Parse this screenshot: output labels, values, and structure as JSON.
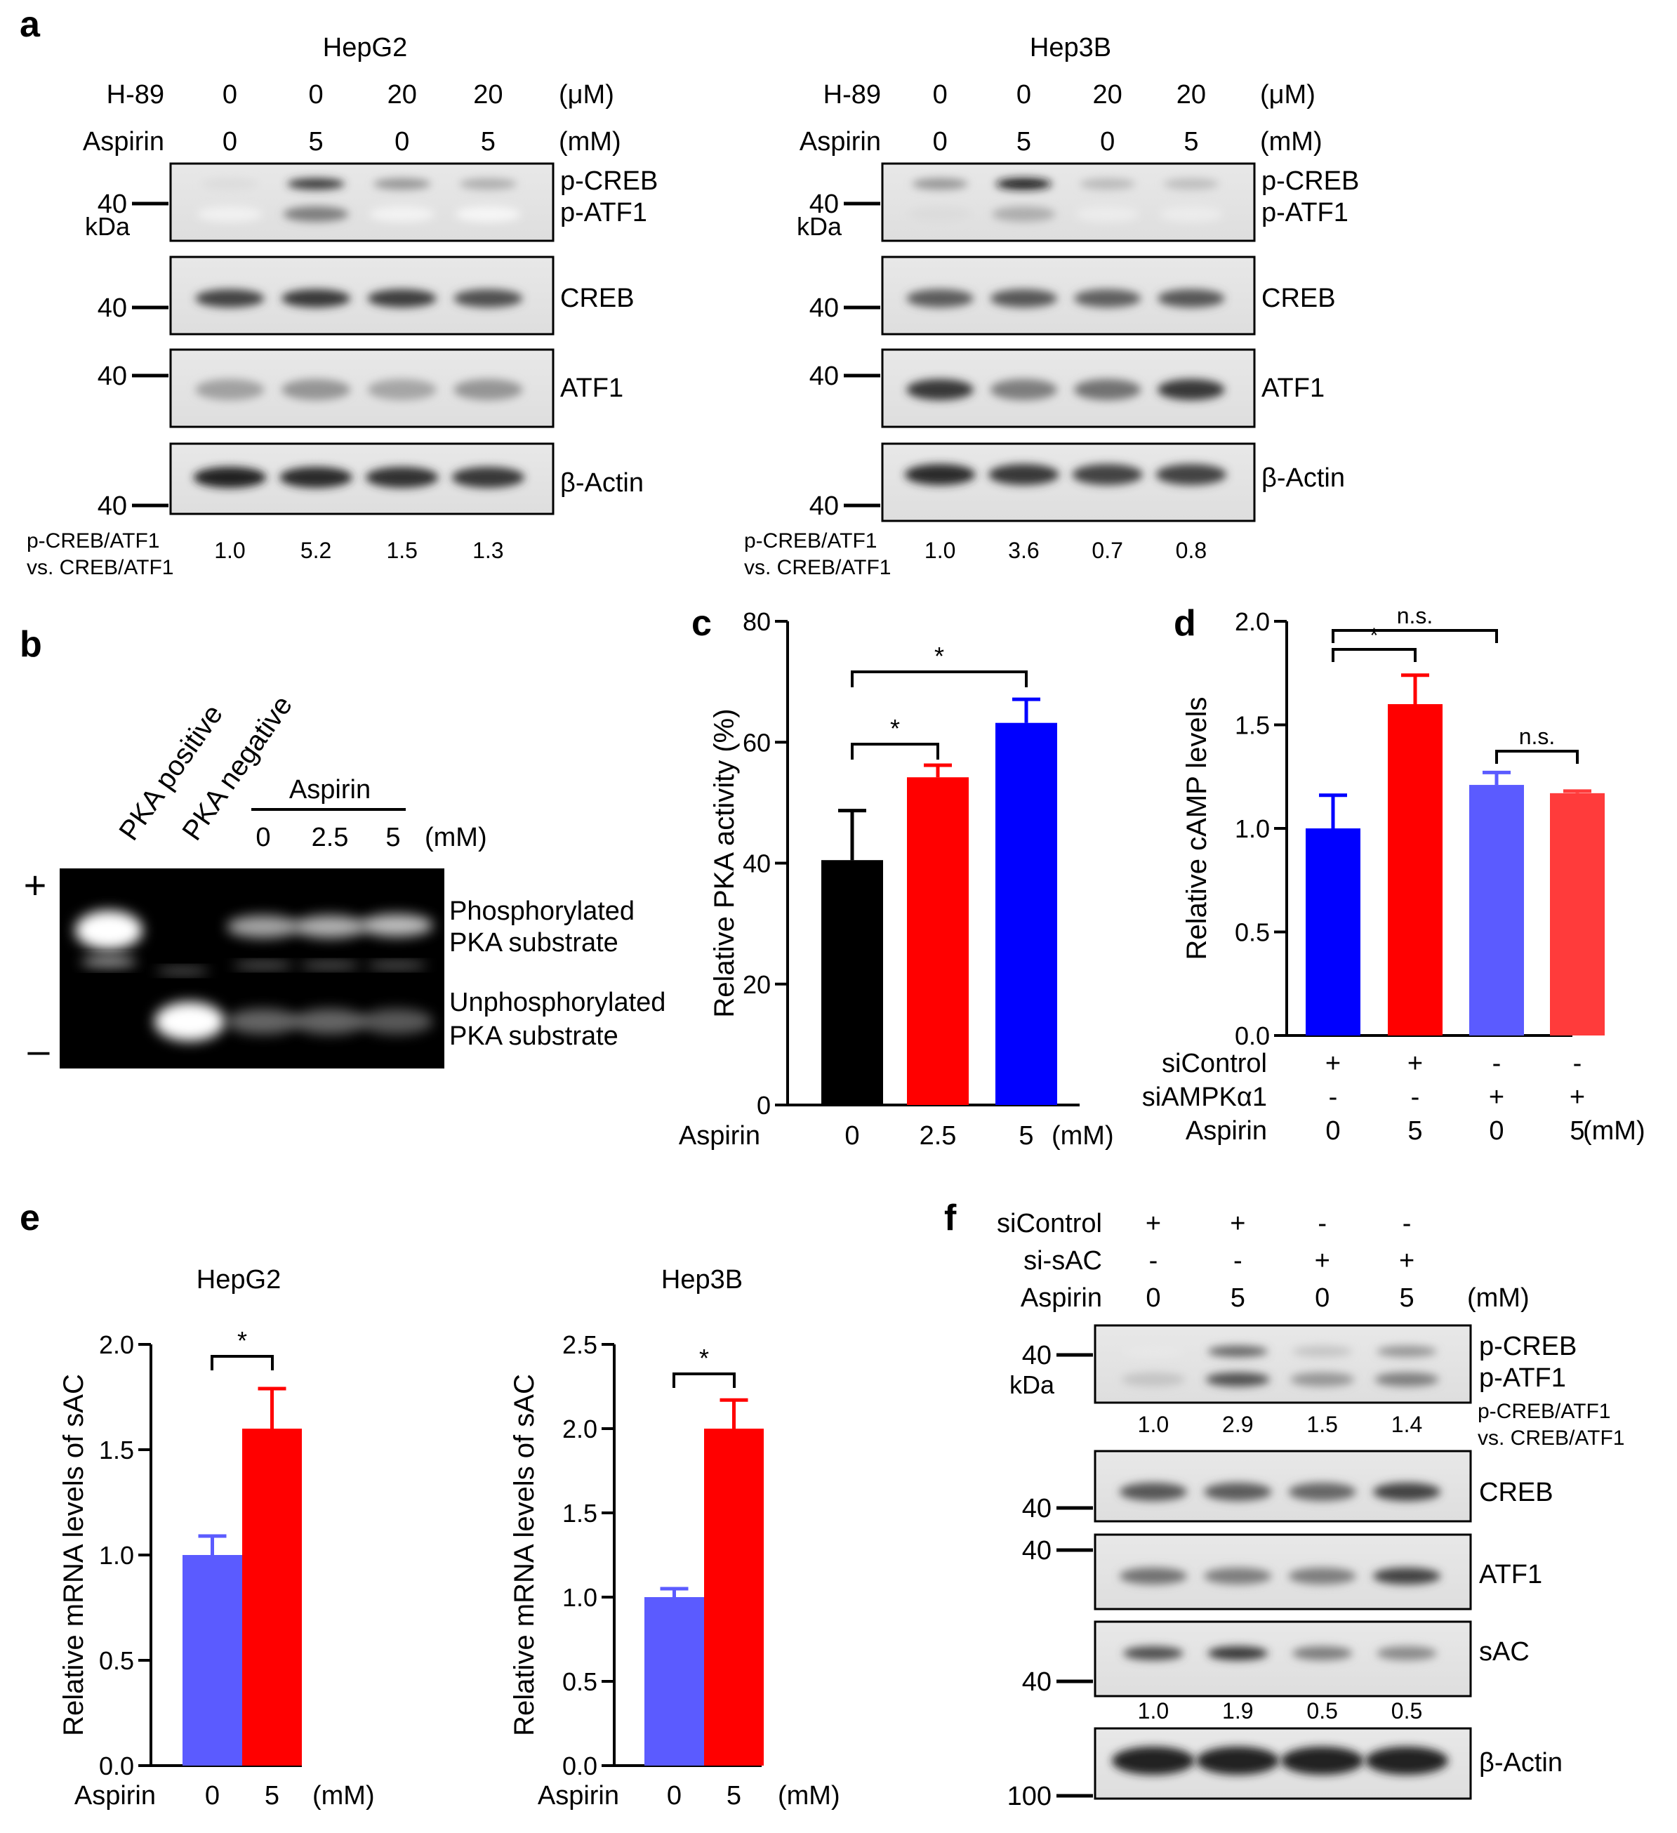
{
  "figure": {
    "panel_a": {
      "letter": "a",
      "blots": [
        {
          "cell": "HepG2",
          "rows": [
            {
              "name": "H-89",
              "values": [
                "0",
                "0",
                "20",
                "20"
              ],
              "unit": "(μM)"
            },
            {
              "name": "Aspirin",
              "values": [
                "0",
                "5",
                "0",
                "5"
              ],
              "unit": "(mM)"
            }
          ],
          "bands": [
            "p-CREB",
            "p-ATF1",
            "CREB",
            "ATF1",
            "β-Actin"
          ],
          "markers": [
            "40",
            "kDa",
            "40",
            "40",
            "40"
          ],
          "quant_label": [
            "p-CREB/ATF1",
            "vs. CREB/ATF1"
          ],
          "quant": [
            "1.0",
            "5.2",
            "1.5",
            "1.3"
          ]
        },
        {
          "cell": "Hep3B",
          "rows": [
            {
              "name": "H-89",
              "values": [
                "0",
                "0",
                "20",
                "20"
              ],
              "unit": "(μM)"
            },
            {
              "name": "Aspirin",
              "values": [
                "0",
                "5",
                "0",
                "5"
              ],
              "unit": "(mM)"
            }
          ],
          "bands": [
            "p-CREB",
            "p-ATF1",
            "CREB",
            "ATF1",
            "β-Actin"
          ],
          "markers": [
            "40",
            "kDa",
            "40",
            "40",
            "40"
          ],
          "quant_label": [
            "p-CREB/ATF1",
            "vs. CREB/ATF1"
          ],
          "quant": [
            "1.0",
            "3.6",
            "0.7",
            "0.8"
          ]
        }
      ]
    },
    "panel_b": {
      "letter": "b",
      "lanes": [
        "PKA positive",
        "PKA negative"
      ],
      "aspirin_label": "Aspirin",
      "aspirin_doses": [
        "0",
        "2.5",
        "5"
      ],
      "unit": "(mM)",
      "plus": "+",
      "minus": "–",
      "phos_label": [
        "Phosphorylated",
        "PKA substrate"
      ],
      "unphos_label": [
        "Unphosphorylated",
        "PKA substrate"
      ]
    },
    "panel_f": {
      "letter": "f",
      "rows": [
        {
          "name": "siControl",
          "values": [
            "+",
            "+",
            "-",
            "-"
          ],
          "unit": ""
        },
        {
          "name": "si-sAC",
          "values": [
            "-",
            "-",
            "+",
            "+"
          ],
          "unit": ""
        },
        {
          "name": "Aspirin",
          "values": [
            "0",
            "5",
            "0",
            "5"
          ],
          "unit": "(mM)"
        }
      ],
      "bands": [
        "p-CREB",
        "p-ATF1",
        "CREB",
        "ATF1",
        "sAC",
        "β-Actin"
      ],
      "markers": [
        "40",
        "kDa",
        "40",
        "40",
        "40",
        "100"
      ],
      "quant_label": [
        "p-CREB/ATF1",
        "vs. CREB/ATF1"
      ],
      "quant_phospho": [
        "1.0",
        "2.9",
        "1.5",
        "1.4"
      ],
      "quant_sac": [
        "1.0",
        "1.9",
        "0.5",
        "0.5"
      ]
    }
  },
  "chart_data": [
    {
      "panel": "c",
      "type": "bar",
      "title": "",
      "ylabel": "Relative PKA activity  (%)",
      "xlabel": "Aspirin",
      "x_unit": "(mM)",
      "categories": [
        "0",
        "2.5",
        "5"
      ],
      "values": [
        40.5,
        54.2,
        63.2
      ],
      "errors": [
        8.2,
        2.0,
        3.9
      ],
      "colors": [
        "#000000",
        "#ff0000",
        "#0000ff"
      ],
      "yticks": [
        "0",
        "20",
        "40",
        "60",
        "80"
      ],
      "ylim": [
        0,
        80
      ],
      "significance": [
        "*",
        "*"
      ]
    },
    {
      "panel": "d",
      "type": "bar",
      "title": "",
      "ylabel": "Relative cAMP levels",
      "categories": [
        "0",
        "5",
        "0",
        "5"
      ],
      "values": [
        1.0,
        1.6,
        1.21,
        1.17
      ],
      "errors": [
        0.16,
        0.14,
        0.06,
        0.01
      ],
      "colors": [
        "#0000ff",
        "#ff0000",
        "#5b5bff",
        "#ff3b3b"
      ],
      "yticks": [
        "0.0",
        "0.5",
        "1.0",
        "1.5",
        "2.0"
      ],
      "ylim": [
        0,
        2.0
      ],
      "conditions": [
        {
          "name": "siControl",
          "values": [
            "+",
            "+",
            "-",
            "-"
          ]
        },
        {
          "name": "siAMPKα1",
          "values": [
            "-",
            "-",
            "+",
            "+"
          ]
        },
        {
          "name": "Aspirin",
          "values": [
            "0",
            "5",
            "0",
            "5"
          ],
          "unit": "(mM)"
        }
      ],
      "significance": [
        "*",
        "n.s.",
        "n.s."
      ]
    },
    {
      "panel": "e",
      "type": "bar",
      "title": "HepG2",
      "ylabel": "Relative mRNA levels of sAC",
      "xlabel": "Aspirin",
      "x_unit": "(mM)",
      "categories": [
        "0",
        "5"
      ],
      "values": [
        1.0,
        1.6
      ],
      "errors": [
        0.09,
        0.19
      ],
      "colors": [
        "#5b5bff",
        "#ff0000"
      ],
      "yticks": [
        "0.0",
        "0.5",
        "1.0",
        "1.5",
        "2.0"
      ],
      "ylim": [
        0,
        2.0
      ],
      "significance": [
        "*"
      ]
    },
    {
      "panel": "e",
      "type": "bar",
      "title": "Hep3B",
      "ylabel": "Relative mRNA levels of sAC",
      "xlabel": "Aspirin",
      "x_unit": "(mM)",
      "categories": [
        "0",
        "5"
      ],
      "values": [
        1.0,
        2.0
      ],
      "errors": [
        0.05,
        0.17
      ],
      "colors": [
        "#5b5bff",
        "#ff0000"
      ],
      "yticks": [
        "0.0",
        "0.5",
        "1.0",
        "1.5",
        "2.0",
        "2.5"
      ],
      "ylim": [
        0,
        2.5
      ],
      "significance": [
        "*"
      ]
    }
  ]
}
